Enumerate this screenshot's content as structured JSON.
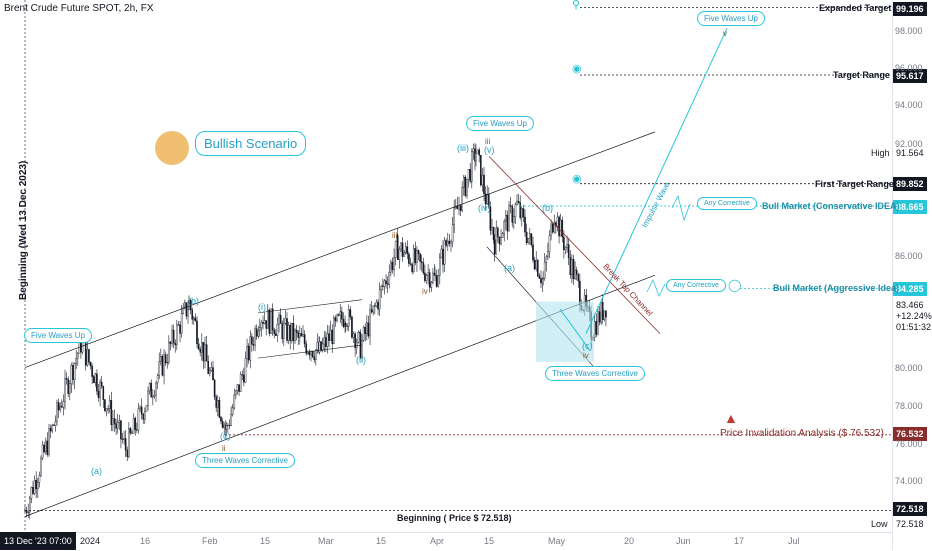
{
  "title": "Brent Crude Future SPOT, 2h, FX",
  "scenario_label": "Bullish Scenario",
  "side_label": "Beginning (Wed 13 Dec 2023)",
  "date_cursor": "13 Dec '23  07:00",
  "colors": {
    "accent": "#26c6da",
    "bear": "#8b2c2c",
    "ink": "#131722"
  },
  "price_axis_ticks": [
    "98.000",
    "96.000",
    "94.000",
    "92.000",
    "86.000",
    "80.000",
    "78.000",
    "76.000",
    "74.000"
  ],
  "price_tags": {
    "expanded": "99.196",
    "target": "95.617",
    "high_label": "High",
    "high": "91.564",
    "first_target": "89.852",
    "conservative": "88.665",
    "aggressive": "84.285",
    "last": "83.466",
    "change": "+12.24%",
    "countdown": "01:51:32",
    "invalidation": "76.532",
    "beginning": "72.518",
    "low_label": "Low",
    "low": "72.518"
  },
  "levels": {
    "expanded_target": "Expanded Target",
    "target_range": "Target Range",
    "first_target": "First Target Range",
    "conservative": "Bull Market (Conservative IDEA)",
    "aggressive": "Bull Market (Aggressive Idea)",
    "invalidation": "Price Invalidation Analysis ($ 76.532)",
    "beginning": "Beginning ( Price $ 72.518)"
  },
  "callouts": {
    "five_up_left": "Five Waves Up",
    "five_up_mid": "Five Waves Up",
    "five_up_top": "Five Waves Up",
    "three_corr_left": "Three Waves Corrective",
    "three_corr_right": "Three Waves Corrective",
    "any_corr_1": "Any Corrective",
    "any_corr_2": "Any Corrective",
    "impulse": "Impulse Wave",
    "break": "Break Top Channel"
  },
  "waves": {
    "a": "(a)",
    "b": "(b)",
    "c": "(c)",
    "i": "(i)",
    "ii": "(ii)",
    "iii": "(iii)",
    "iv": "(iv)",
    "v": "(v)",
    "wa": "(a)",
    "wb": "(b)",
    "wc": "(c)",
    "roman_i": "i",
    "roman_ii": "ii",
    "roman_iii": "iii",
    "roman_iv": "iv",
    "roman_v": "v"
  },
  "time_axis": [
    "2024",
    "16",
    "Feb",
    "15",
    "Mar",
    "15",
    "Apr",
    "15",
    "May",
    "20",
    "Jun",
    "17",
    "Jul"
  ],
  "chart_data": {
    "type": "candlestick",
    "symbol": "Brent Crude Future SPOT",
    "interval": "2h",
    "ylim": [
      72.0,
      100.0
    ],
    "key_points": [
      {
        "t": "2023-12-13",
        "price": 72.518
      },
      {
        "t": "2023-12-28",
        "price": 81.4
      },
      {
        "t": "2024-01-09",
        "price": 75.8
      },
      {
        "t": "2024-01-26",
        "price": 83.5
      },
      {
        "t": "2024-02-05",
        "price": 76.8
      },
      {
        "t": "2024-02-14",
        "price": 82.9
      },
      {
        "t": "2024-03-01",
        "price": 80.9
      },
      {
        "t": "2024-03-08",
        "price": 83.0
      },
      {
        "t": "2024-03-12",
        "price": 81.2
      },
      {
        "t": "2024-03-22",
        "price": 86.5
      },
      {
        "t": "2024-04-01",
        "price": 84.8
      },
      {
        "t": "2024-04-12",
        "price": 91.564
      },
      {
        "t": "2024-04-17",
        "price": 86.8
      },
      {
        "t": "2024-04-23",
        "price": 88.7
      },
      {
        "t": "2024-04-30",
        "price": 84.7
      },
      {
        "t": "2024-05-03",
        "price": 88.4
      },
      {
        "t": "2024-05-13",
        "price": 82.1
      },
      {
        "t": "2024-05-17",
        "price": 83.466
      }
    ]
  }
}
